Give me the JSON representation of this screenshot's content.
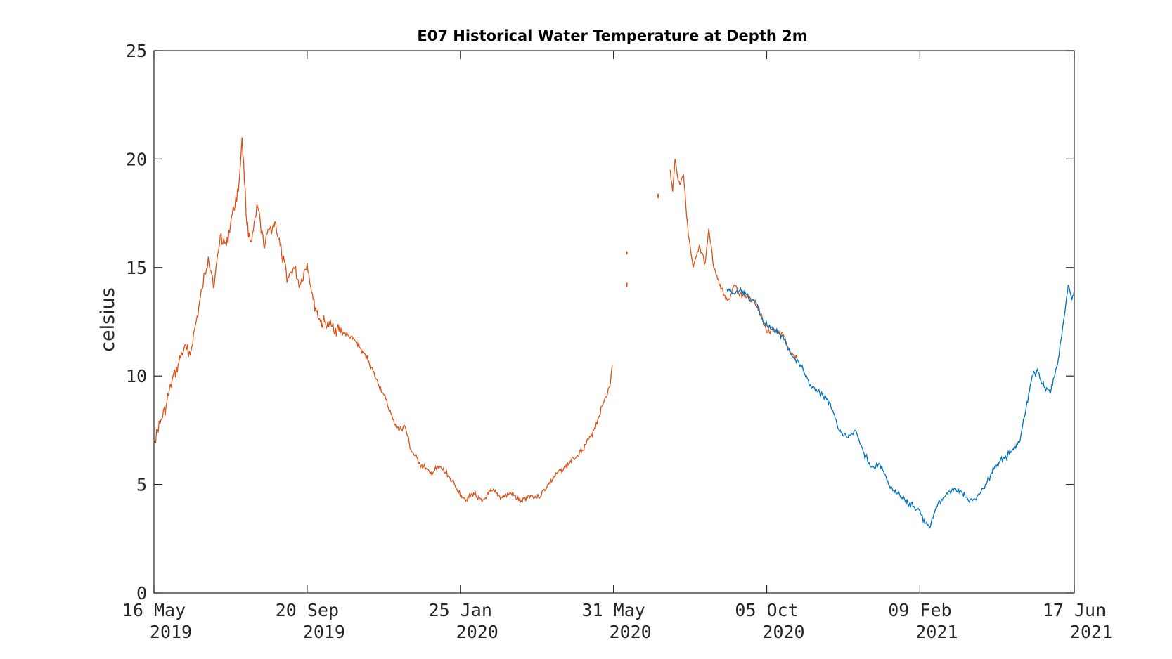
{
  "chart_data": {
    "type": "line",
    "title": "E07 Historical Water Temperature at Depth 2m",
    "xlabel": "",
    "ylabel": "celsius",
    "xlim": [
      "2019-05-16",
      "2021-06-17"
    ],
    "ylim": [
      0,
      25
    ],
    "grid": false,
    "x_ticks": [
      {
        "date": "2019-05-16",
        "line1": "16 May",
        "line2": "2019"
      },
      {
        "date": "2019-09-20",
        "line1": "20 Sep",
        "line2": "2019"
      },
      {
        "date": "2020-01-25",
        "line1": "25 Jan",
        "line2": "2020"
      },
      {
        "date": "2020-05-31",
        "line1": "31 May",
        "line2": "2020"
      },
      {
        "date": "2020-10-05",
        "line1": "05 Oct",
        "line2": "2020"
      },
      {
        "date": "2021-02-09",
        "line1": "09 Feb",
        "line2": "2021"
      },
      {
        "date": "2021-06-17",
        "line1": "17 Jun",
        "line2": "2021"
      }
    ],
    "y_ticks": [
      0,
      5,
      10,
      15,
      20,
      25
    ],
    "series": [
      {
        "color": "#D95319",
        "segments": [
          [
            [
              "2019-05-16",
              7.0
            ],
            [
              "2019-05-21",
              7.8
            ],
            [
              "2019-05-26",
              8.6
            ],
            [
              "2019-05-31",
              9.8
            ],
            [
              "2019-06-05",
              10.5
            ],
            [
              "2019-06-10",
              11.3
            ],
            [
              "2019-06-15",
              11.0
            ],
            [
              "2019-06-20",
              12.5
            ],
            [
              "2019-06-25",
              14.0
            ],
            [
              "2019-06-30",
              15.5
            ],
            [
              "2019-07-05",
              14.2
            ],
            [
              "2019-07-10",
              16.5
            ],
            [
              "2019-07-15",
              16.0
            ],
            [
              "2019-07-20",
              17.5
            ],
            [
              "2019-07-25",
              18.5
            ],
            [
              "2019-07-28",
              21.0
            ],
            [
              "2019-08-01",
              17.0
            ],
            [
              "2019-08-05",
              16.2
            ],
            [
              "2019-08-10",
              17.8
            ],
            [
              "2019-08-15",
              16.0
            ],
            [
              "2019-08-20",
              16.8
            ],
            [
              "2019-08-25",
              17.0
            ],
            [
              "2019-08-30",
              15.5
            ],
            [
              "2019-09-04",
              14.5
            ],
            [
              "2019-09-09",
              15.0
            ],
            [
              "2019-09-14",
              14.2
            ],
            [
              "2019-09-20",
              15.2
            ],
            [
              "2019-09-25",
              13.5
            ],
            [
              "2019-10-01",
              12.5
            ],
            [
              "2019-10-10",
              12.3
            ],
            [
              "2019-10-20",
              12.0
            ],
            [
              "2019-10-30",
              11.6
            ],
            [
              "2019-11-10",
              10.7
            ],
            [
              "2019-11-15",
              10.0
            ],
            [
              "2019-11-22",
              9.2
            ],
            [
              "2019-11-30",
              8.0
            ],
            [
              "2019-12-05",
              7.5
            ],
            [
              "2019-12-10",
              7.7
            ],
            [
              "2019-12-15",
              6.6
            ],
            [
              "2019-12-22",
              6.0
            ],
            [
              "2019-12-31",
              5.5
            ],
            [
              "2020-01-08",
              5.8
            ],
            [
              "2020-01-15",
              5.4
            ],
            [
              "2020-01-22",
              4.8
            ],
            [
              "2020-01-30",
              4.3
            ],
            [
              "2020-02-05",
              4.6
            ],
            [
              "2020-02-12",
              4.2
            ],
            [
              "2020-02-20",
              4.7
            ],
            [
              "2020-02-28",
              4.4
            ],
            [
              "2020-03-07",
              4.6
            ],
            [
              "2020-03-15",
              4.2
            ],
            [
              "2020-03-22",
              4.5
            ],
            [
              "2020-03-30",
              4.4
            ],
            [
              "2020-04-07",
              5.0
            ],
            [
              "2020-04-14",
              5.5
            ],
            [
              "2020-04-21",
              5.8
            ],
            [
              "2020-04-28",
              6.2
            ],
            [
              "2020-05-05",
              6.6
            ],
            [
              "2020-05-12",
              7.2
            ],
            [
              "2020-05-18",
              8.0
            ],
            [
              "2020-05-24",
              9.0
            ],
            [
              "2020-05-28",
              9.5
            ],
            [
              "2020-05-30",
              10.5
            ]
          ],
          [
            [
              "2020-06-11",
              15.75
            ],
            [
              "2020-06-11",
              15.6
            ]
          ],
          [
            [
              "2020-06-11",
              14.3
            ],
            [
              "2020-06-11",
              14.1
            ]
          ],
          [
            [
              "2020-07-07",
              18.4
            ],
            [
              "2020-07-07",
              18.2
            ]
          ],
          [
            [
              "2020-07-17",
              19.5
            ],
            [
              "2020-07-19",
              18.5
            ],
            [
              "2020-07-21",
              20.0
            ],
            [
              "2020-07-23",
              19.2
            ],
            [
              "2020-07-25",
              18.8
            ],
            [
              "2020-07-28",
              19.3
            ],
            [
              "2020-08-01",
              16.5
            ],
            [
              "2020-08-05",
              15.0
            ],
            [
              "2020-08-10",
              16.0
            ],
            [
              "2020-08-15",
              15.2
            ],
            [
              "2020-08-18",
              16.8
            ],
            [
              "2020-08-22",
              15.0
            ],
            [
              "2020-08-28",
              14.0
            ],
            [
              "2020-09-03",
              13.5
            ],
            [
              "2020-09-08",
              14.2
            ],
            [
              "2020-09-13",
              13.8
            ],
            [
              "2020-09-18",
              13.6
            ],
            [
              "2020-09-23",
              13.5
            ],
            [
              "2020-09-28",
              13.2
            ],
            [
              "2020-10-05",
              12.0
            ],
            [
              "2020-10-10",
              12.2
            ],
            [
              "2020-10-15",
              12.0
            ],
            [
              "2020-10-20",
              11.8
            ],
            [
              "2020-10-25",
              11.0
            ],
            [
              "2020-10-30",
              10.8
            ]
          ]
        ]
      },
      {
        "color": "#0072BD",
        "segments": [
          [
            [
              "2020-09-02",
              14.0
            ],
            [
              "2020-09-08",
              13.8
            ],
            [
              "2020-09-14",
              13.9
            ],
            [
              "2020-09-20",
              13.6
            ],
            [
              "2020-09-26",
              13.4
            ],
            [
              "2020-10-02",
              12.5
            ],
            [
              "2020-10-08",
              12.2
            ],
            [
              "2020-10-14",
              12.0
            ],
            [
              "2020-10-20",
              11.7
            ],
            [
              "2020-10-26",
              10.9
            ],
            [
              "2020-11-02",
              10.5
            ],
            [
              "2020-11-10",
              9.6
            ],
            [
              "2020-11-18",
              9.2
            ],
            [
              "2020-11-26",
              8.8
            ],
            [
              "2020-12-03",
              7.6
            ],
            [
              "2020-12-10",
              7.2
            ],
            [
              "2020-12-17",
              7.5
            ],
            [
              "2020-12-24",
              6.5
            ],
            [
              "2020-12-31",
              5.8
            ],
            [
              "2021-01-07",
              5.9
            ],
            [
              "2021-01-14",
              5.0
            ],
            [
              "2021-01-21",
              4.6
            ],
            [
              "2021-01-28",
              4.2
            ],
            [
              "2021-02-04",
              4.0
            ],
            [
              "2021-02-09",
              3.8
            ],
            [
              "2021-02-13",
              3.2
            ],
            [
              "2021-02-17",
              3.0
            ],
            [
              "2021-02-22",
              3.9
            ],
            [
              "2021-03-01",
              4.4
            ],
            [
              "2021-03-08",
              4.8
            ],
            [
              "2021-03-15",
              4.7
            ],
            [
              "2021-03-22",
              4.2
            ],
            [
              "2021-03-29",
              4.5
            ],
            [
              "2021-04-05",
              5.0
            ],
            [
              "2021-04-12",
              5.8
            ],
            [
              "2021-04-19",
              6.2
            ],
            [
              "2021-04-26",
              6.5
            ],
            [
              "2021-05-03",
              7.0
            ],
            [
              "2021-05-08",
              8.5
            ],
            [
              "2021-05-13",
              10.0
            ],
            [
              "2021-05-18",
              10.2
            ],
            [
              "2021-05-23",
              9.5
            ],
            [
              "2021-05-28",
              9.2
            ],
            [
              "2021-06-03",
              10.5
            ],
            [
              "2021-06-08",
              12.5
            ],
            [
              "2021-06-12",
              14.2
            ],
            [
              "2021-06-15",
              13.5
            ],
            [
              "2021-06-17",
              14.0
            ]
          ]
        ]
      }
    ]
  }
}
